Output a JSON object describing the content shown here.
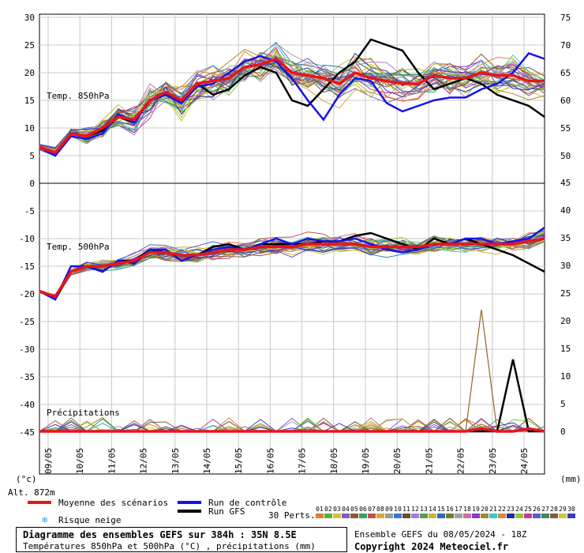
{
  "panel_labels": {
    "t850": "Temp. 850hPa",
    "t500": "Temp. 500hPa",
    "precip": "Précipitations",
    "left_unit": "(°c)",
    "right_unit": "(mm)",
    "altitude": "Alt. 872m"
  },
  "axes": {
    "left_ticks": [
      "30",
      "25",
      "20",
      "15",
      "10",
      "5",
      "0",
      "-5",
      "-10",
      "-15",
      "-20",
      "-25",
      "-30",
      "-35",
      "-40",
      "-45"
    ],
    "left_tick_values": [
      30,
      25,
      20,
      15,
      10,
      5,
      0,
      -5,
      -10,
      -15,
      -20,
      -25,
      -30,
      -35,
      -40,
      -45
    ],
    "right_top_ticks": [
      "75",
      "70",
      "65",
      "60",
      "55",
      "50"
    ],
    "right_bottom_ticks": [
      "45",
      "40",
      "35",
      "30",
      "25",
      "20",
      "15",
      "10",
      "5",
      "0"
    ],
    "date_labels": [
      "09/05",
      "10/05",
      "11/05",
      "12/05",
      "13/05",
      "14/05",
      "15/05",
      "16/05",
      "17/05",
      "18/05",
      "19/05",
      "20/05",
      "21/05",
      "22/05",
      "23/05",
      "24/05"
    ]
  },
  "legend": {
    "mean": "Moyenne des scénarios",
    "control": "Run de contrôle",
    "gfs": "Run GFS",
    "snow": "Risque neige",
    "perts_label": "30 Perts.",
    "mean_color": "#e8141c",
    "control_color": "#1414e8",
    "gfs_color": "#000000",
    "snow_icon": "snowflake-icon"
  },
  "perturbations": {
    "labels": [
      "01",
      "02",
      "03",
      "04",
      "05",
      "06",
      "07",
      "08",
      "09",
      "10",
      "11",
      "12",
      "13",
      "14",
      "15",
      "16",
      "17",
      "18",
      "19",
      "20",
      "21",
      "22",
      "23",
      "24",
      "25",
      "26",
      "27",
      "28",
      "29",
      "30"
    ],
    "colors": [
      "#e07b39",
      "#5fae3b",
      "#d4c13a",
      "#7b5fc9",
      "#8b5a2b",
      "#2fa36b",
      "#c94d4d",
      "#d9a441",
      "#9a9a9a",
      "#3b78c9",
      "#6a4c2b",
      "#b07ad4",
      "#5a9a5a",
      "#c9b33a",
      "#2b6ab0",
      "#7a7a2b",
      "#a0a0a0",
      "#c96fa0",
      "#8a3bc9",
      "#a08a2b",
      "#3bc9c9",
      "#d48a3b",
      "#2b2b8a",
      "#8ac93b",
      "#c93b8a",
      "#5a5ac9",
      "#3b8a5a",
      "#8a5a3b",
      "#c9c93b",
      "#3b3bc9"
    ]
  },
  "info": {
    "title": "Diagramme des ensembles GEFS sur 384h : 35N 8.5E",
    "subtitle": "Températures 850hPa et 500hPa (°C) , précipitations (mm)",
    "ensemble": "Ensemble GEFS du 08/05/2024 - 18Z",
    "copyright": "Copyright 2024 Meteociel.fr"
  },
  "chart_data": [
    {
      "type": "line",
      "title": "Temp. 850hPa",
      "ylabel": "(°c)",
      "ylim": [
        0,
        30
      ],
      "x": [
        "08/05 18Z",
        "09/05",
        "09/12",
        "10/05",
        "10/12",
        "11/05",
        "11/12",
        "12/05",
        "12/12",
        "13/05",
        "13/12",
        "14/05",
        "14/12",
        "15/05",
        "15/12",
        "16/05",
        "16/12",
        "17/05",
        "17/12",
        "18/05",
        "18/12",
        "19/05",
        "19/12",
        "20/05",
        "20/12",
        "21/05",
        "21/12",
        "22/05",
        "22/12",
        "23/05",
        "23/12",
        "24/05",
        "24/12"
      ],
      "series": [
        {
          "name": "Moyenne des scénarios",
          "values": [
            6.5,
            5.5,
            9,
            8.5,
            10,
            12,
            11.5,
            15,
            16.5,
            15,
            18,
            18.5,
            19,
            21,
            21.5,
            22.5,
            20,
            19.5,
            19,
            18,
            20,
            19,
            18.5,
            18,
            18,
            19.5,
            19,
            19,
            20,
            19.5,
            19.5,
            18.5,
            18.5
          ]
        },
        {
          "name": "Run de contrôle",
          "values": [
            6.5,
            5,
            8.5,
            8,
            9,
            12.5,
            11,
            15,
            16,
            14.5,
            17.5,
            18,
            20,
            22,
            23,
            22,
            19,
            15,
            11.5,
            16,
            19,
            18.5,
            14.5,
            13,
            14,
            15,
            15.5,
            15.5,
            17,
            18,
            20,
            23.5,
            22.5
          ]
        },
        {
          "name": "Run GFS",
          "values": [
            6.5,
            5,
            9,
            8.5,
            9.5,
            12,
            11,
            15,
            16,
            14.5,
            18,
            16,
            17,
            19.5,
            21,
            20,
            15,
            14,
            17,
            20,
            22,
            26,
            25,
            24,
            20,
            17,
            18,
            19,
            18,
            16,
            15,
            14,
            12
          ]
        }
      ]
    },
    {
      "type": "line",
      "title": "Temp. 500hPa",
      "ylabel": "(°c)",
      "ylim": [
        -45,
        0
      ],
      "x": [
        "08/05 18Z",
        "09/05",
        "09/12",
        "10/05",
        "10/12",
        "11/05",
        "11/12",
        "12/05",
        "12/12",
        "13/05",
        "13/12",
        "14/05",
        "14/12",
        "15/05",
        "15/12",
        "16/05",
        "16/12",
        "17/05",
        "17/12",
        "18/05",
        "18/12",
        "19/05",
        "19/12",
        "20/05",
        "20/12",
        "21/05",
        "21/12",
        "22/05",
        "22/12",
        "23/05",
        "23/12",
        "24/05",
        "24/12"
      ],
      "series": [
        {
          "name": "Moyenne des scénarios",
          "values": [
            -19.5,
            -20.5,
            -16,
            -15,
            -15,
            -14.5,
            -14,
            -12.5,
            -12.5,
            -13,
            -13,
            -12.5,
            -12,
            -12,
            -11.5,
            -11.5,
            -11.5,
            -11,
            -11,
            -11,
            -11,
            -11.5,
            -11.5,
            -11.5,
            -11.5,
            -11,
            -11,
            -11,
            -11,
            -11,
            -11,
            -10.5,
            -10
          ]
        },
        {
          "name": "Run de contrôle",
          "values": [
            -19.5,
            -21,
            -15,
            -15,
            -16,
            -14,
            -14.5,
            -12,
            -12,
            -14,
            -13,
            -12,
            -11.5,
            -12,
            -11,
            -10,
            -11,
            -10,
            -10.5,
            -10.5,
            -10,
            -11,
            -12,
            -12.5,
            -12,
            -11,
            -11,
            -10,
            -10,
            -11,
            -10.5,
            -10,
            -8
          ]
        },
        {
          "name": "Run GFS",
          "values": [
            -19.5,
            -21,
            -16,
            -15,
            -16,
            -14,
            -14,
            -12,
            -12.5,
            -13,
            -13,
            -11.5,
            -11,
            -12,
            -11,
            -11,
            -11,
            -11,
            -10.5,
            -10.5,
            -9.5,
            -9,
            -10,
            -11,
            -12,
            -10,
            -11,
            -10,
            -11,
            -12,
            -13,
            -14.5,
            -16
          ]
        }
      ]
    },
    {
      "type": "line",
      "title": "Précipitations",
      "ylabel": "(mm)",
      "ylim": [
        0,
        45
      ],
      "x": [
        "08/05 18Z",
        "09/05",
        "09/12",
        "10/05",
        "10/12",
        "11/05",
        "11/12",
        "12/05",
        "12/12",
        "13/05",
        "13/12",
        "14/05",
        "14/12",
        "15/05",
        "15/12",
        "16/05",
        "16/12",
        "17/05",
        "17/12",
        "18/05",
        "18/12",
        "19/05",
        "19/12",
        "20/05",
        "20/12",
        "21/05",
        "21/12",
        "22/05",
        "22/12",
        "23/05",
        "23/12",
        "24/05",
        "24/12"
      ],
      "series": [
        {
          "name": "Moyenne des scénarios",
          "values": [
            0,
            0,
            0,
            0,
            0,
            0,
            0,
            0,
            0,
            0,
            0,
            0,
            0,
            0,
            0,
            0,
            0,
            0,
            0,
            0,
            0,
            0,
            0,
            0,
            0,
            0,
            0,
            0,
            0.5,
            0,
            0,
            0.5,
            0
          ]
        },
        {
          "name": "19",
          "values": [
            0,
            0,
            0,
            0,
            0,
            0,
            0,
            0,
            0,
            0,
            0,
            0,
            0,
            0,
            0,
            0,
            0,
            0,
            0,
            0,
            0,
            0,
            0,
            0,
            0,
            0,
            0,
            0,
            22,
            0,
            0,
            0,
            0
          ]
        },
        {
          "name": "Run GFS",
          "values": [
            0,
            0,
            0,
            0,
            0,
            0,
            0,
            0,
            0,
            0,
            0,
            0,
            0,
            0,
            0,
            0,
            0,
            0,
            0,
            0,
            0,
            0,
            0,
            0,
            0,
            0,
            0,
            0,
            0,
            0,
            13,
            0,
            0
          ]
        }
      ]
    }
  ]
}
